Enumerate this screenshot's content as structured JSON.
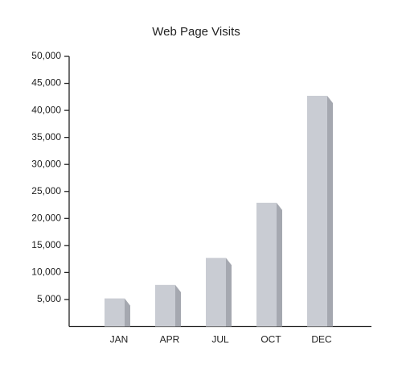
{
  "chart_data": {
    "type": "bar",
    "title": "Web Page Visits",
    "categories": [
      "JAN",
      "APR",
      "JUL",
      "OCT",
      "DEC"
    ],
    "values": [
      5200,
      7700,
      12700,
      22900,
      42700
    ],
    "color": "#c9ccd3",
    "ylim": [
      0,
      50000
    ],
    "yticks": [
      {
        "value": 5000,
        "label": "5,000"
      },
      {
        "value": 10000,
        "label": "10,000"
      },
      {
        "value": 15000,
        "label": "15,000"
      },
      {
        "value": 20000,
        "label": "20,000"
      },
      {
        "value": 25000,
        "label": "25,000"
      },
      {
        "value": 30000,
        "label": "30,000"
      },
      {
        "value": 35000,
        "label": "35,000"
      },
      {
        "value": 40000,
        "label": "40,000"
      },
      {
        "value": 45000,
        "label": "45,000"
      },
      {
        "value": 50000,
        "label": "50,000"
      }
    ],
    "grid": false
  }
}
